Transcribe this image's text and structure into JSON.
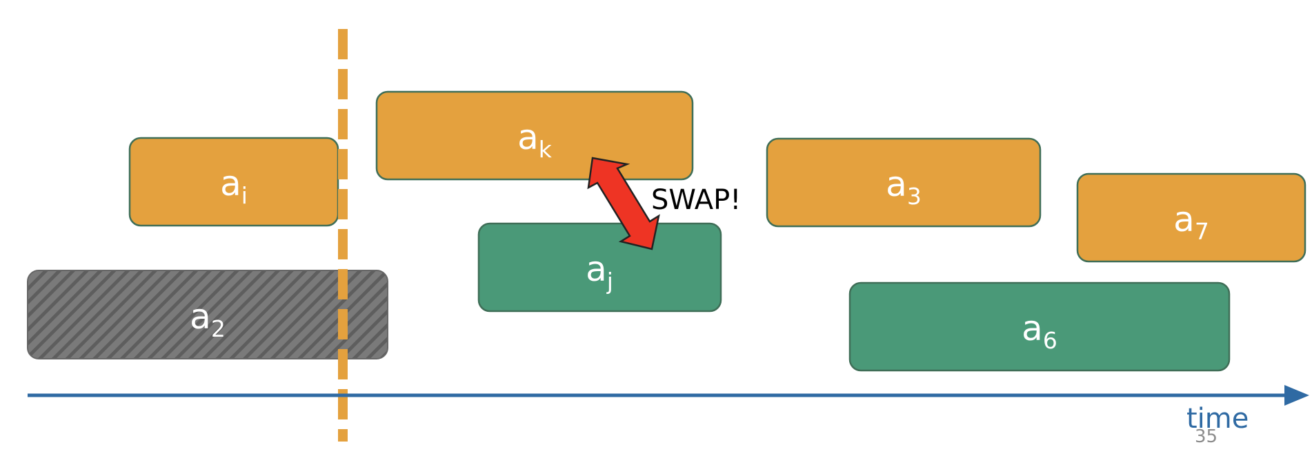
{
  "colors": {
    "orange": "#e4a13e",
    "green": "#4a9978",
    "gray": "#767676",
    "axis": "#2f6aa3",
    "swap_arrow": "#ee3424"
  },
  "blocks": {
    "ai": {
      "base": "a",
      "sub": "i"
    },
    "ak": {
      "base": "a",
      "sub": "k"
    },
    "a3": {
      "base": "a",
      "sub": "3"
    },
    "a7": {
      "base": "a",
      "sub": "7"
    },
    "a2": {
      "base": "a",
      "sub": "2"
    },
    "aj": {
      "base": "a",
      "sub": "j"
    },
    "a6": {
      "base": "a",
      "sub": "6"
    }
  },
  "swap_label": "SWAP!",
  "axis": {
    "label": "time"
  },
  "page_number": "35"
}
